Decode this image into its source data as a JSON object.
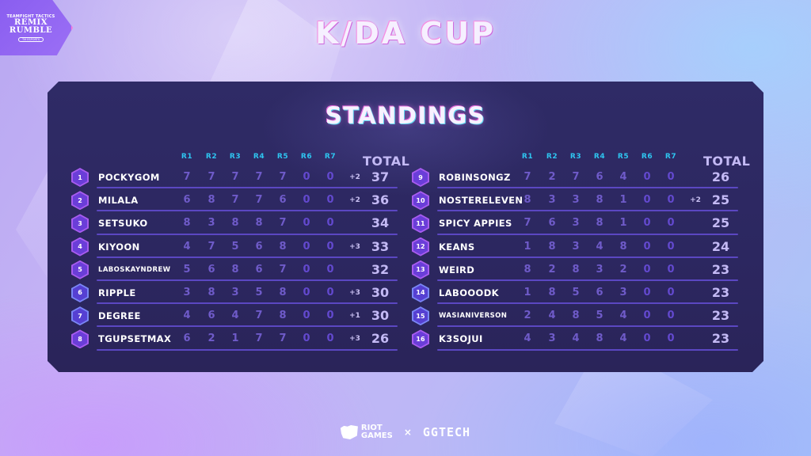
{
  "branding": {
    "event_logo": {
      "line1": "TEAMFIGHT TACTICS",
      "line2": "REMIX",
      "line3": "RUMBLE",
      "pill": "TM ESPORTS"
    },
    "title": "K/DA CUP",
    "section_title": "STANDINGS",
    "footer": {
      "riot_line1": "RIOT",
      "riot_line2": "GAMES",
      "separator": "×",
      "partner": "GGTECH"
    }
  },
  "columns": {
    "rounds": [
      "R1",
      "R2",
      "R3",
      "R4",
      "R5",
      "R6",
      "R7"
    ],
    "total": "TOTAL"
  },
  "colors": {
    "panel_bg": "#2d2962",
    "header_cyan": "#2ec5f0",
    "score_purple": "#6f5bc9",
    "divider": "#5b47c2",
    "badge_pink": "#a85cf0",
    "badge_blue": "#7a86f5"
  },
  "standings": {
    "left": [
      {
        "rank": "1",
        "name": "POCKYGOM",
        "rounds": [
          "7",
          "7",
          "7",
          "7",
          "7",
          "0",
          "0"
        ],
        "bonus": "+2",
        "total": "37"
      },
      {
        "rank": "2",
        "name": "MILALA",
        "rounds": [
          "6",
          "8",
          "7",
          "7",
          "6",
          "0",
          "0"
        ],
        "bonus": "+2",
        "total": "36"
      },
      {
        "rank": "3",
        "name": "SETSUKO",
        "rounds": [
          "8",
          "3",
          "8",
          "8",
          "7",
          "0",
          "0"
        ],
        "bonus": "",
        "total": "34"
      },
      {
        "rank": "4",
        "name": "KIYOON",
        "rounds": [
          "4",
          "7",
          "5",
          "6",
          "8",
          "0",
          "0"
        ],
        "bonus": "+3",
        "total": "33"
      },
      {
        "rank": "5",
        "name": "LABOSKAYNDREW",
        "rounds": [
          "5",
          "6",
          "8",
          "6",
          "7",
          "0",
          "0"
        ],
        "bonus": "",
        "total": "32"
      },
      {
        "rank": "6",
        "name": "RIPPLE",
        "rounds": [
          "3",
          "8",
          "3",
          "5",
          "8",
          "0",
          "0"
        ],
        "bonus": "+3",
        "total": "30"
      },
      {
        "rank": "7",
        "name": "DEGREE",
        "rounds": [
          "4",
          "6",
          "4",
          "7",
          "8",
          "0",
          "0"
        ],
        "bonus": "+1",
        "total": "30"
      },
      {
        "rank": "8",
        "name": "TGUPSETMAX",
        "rounds": [
          "6",
          "2",
          "1",
          "7",
          "7",
          "0",
          "0"
        ],
        "bonus": "+3",
        "total": "26"
      }
    ],
    "right": [
      {
        "rank": "9",
        "name": "ROBINSONGZ",
        "rounds": [
          "7",
          "2",
          "7",
          "6",
          "4",
          "0",
          "0"
        ],
        "bonus": "",
        "total": "26"
      },
      {
        "rank": "10",
        "name": "NOSTERELEVEN",
        "rounds": [
          "8",
          "3",
          "3",
          "8",
          "1",
          "0",
          "0"
        ],
        "bonus": "+2",
        "total": "25"
      },
      {
        "rank": "11",
        "name": "SPICY APPIES",
        "rounds": [
          "7",
          "6",
          "3",
          "8",
          "1",
          "0",
          "0"
        ],
        "bonus": "",
        "total": "25"
      },
      {
        "rank": "12",
        "name": "KEANS",
        "rounds": [
          "1",
          "8",
          "3",
          "4",
          "8",
          "0",
          "0"
        ],
        "bonus": "",
        "total": "24"
      },
      {
        "rank": "13",
        "name": "WEIRD",
        "rounds": [
          "8",
          "2",
          "8",
          "3",
          "2",
          "0",
          "0"
        ],
        "bonus": "",
        "total": "23"
      },
      {
        "rank": "14",
        "name": "LABOOODK",
        "rounds": [
          "1",
          "8",
          "5",
          "6",
          "3",
          "0",
          "0"
        ],
        "bonus": "",
        "total": "23"
      },
      {
        "rank": "15",
        "name": "WASIANIVERSON",
        "rounds": [
          "2",
          "4",
          "8",
          "5",
          "4",
          "0",
          "0"
        ],
        "bonus": "",
        "total": "23"
      },
      {
        "rank": "16",
        "name": "K3SOJUI",
        "rounds": [
          "4",
          "3",
          "4",
          "8",
          "4",
          "0",
          "0"
        ],
        "bonus": "",
        "total": "23"
      }
    ]
  }
}
